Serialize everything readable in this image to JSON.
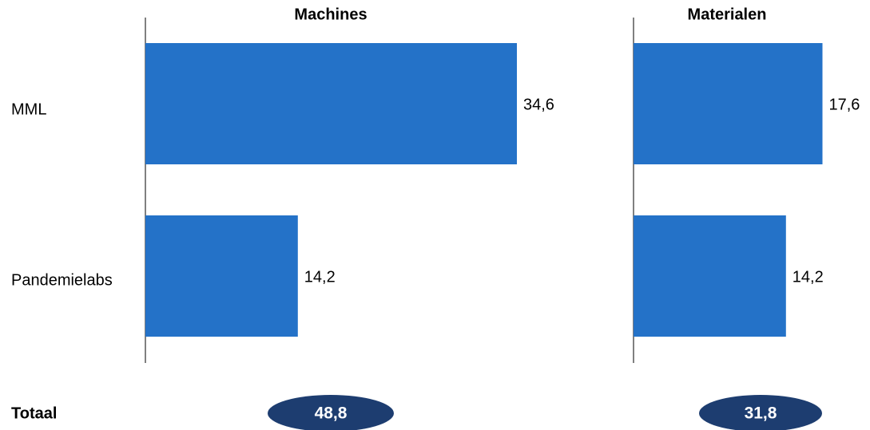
{
  "chart_data": {
    "type": "bar",
    "orientation": "horizontal",
    "categories": [
      "MML",
      "Pandemielabs"
    ],
    "panels": [
      {
        "title": "Machines",
        "values": [
          34.6,
          14.2
        ],
        "value_labels": [
          "34,6",
          "14,2"
        ],
        "total": "48,8"
      },
      {
        "title": "Materialen",
        "values": [
          17.6,
          14.2
        ],
        "value_labels": [
          "17,6",
          "14,2"
        ],
        "total": "31,8"
      }
    ],
    "total_label": "Totaal",
    "xlim": [
      0,
      35
    ],
    "grid": false,
    "colors": {
      "bar": "#2472c8",
      "total_badge": "#1d3d70",
      "axis": "#000000"
    }
  }
}
